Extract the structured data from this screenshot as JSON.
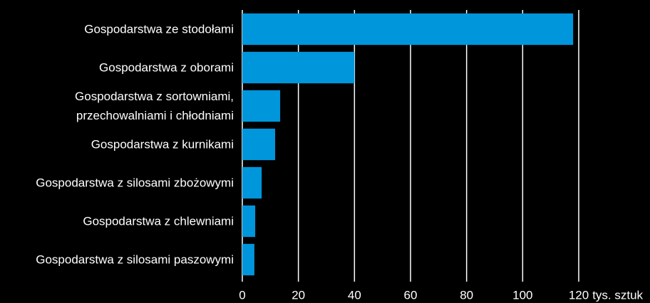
{
  "chart_data": {
    "type": "barh",
    "categories": [
      "Gospodarstwa ze stodołami",
      "Gospodarstwa z oborami",
      "Gospodarstwa z sortowniami,\nprzechowalniami i chłodniami",
      "Gospodarstwa z kurnikami",
      "Gospodarstwa z silosami zbożowymi",
      "Gospodarstwa z chlewniami",
      "Gospodarstwa z silosami paszowymi"
    ],
    "values": [
      118,
      40,
      13.5,
      11.7,
      6.9,
      4.6,
      4.3
    ],
    "color": "#0096dc",
    "xlim": [
      0,
      120
    ],
    "xticks": [
      0,
      20,
      40,
      60,
      80,
      100,
      120
    ],
    "xlabel": "tys. sztuk",
    "grid": true
  }
}
